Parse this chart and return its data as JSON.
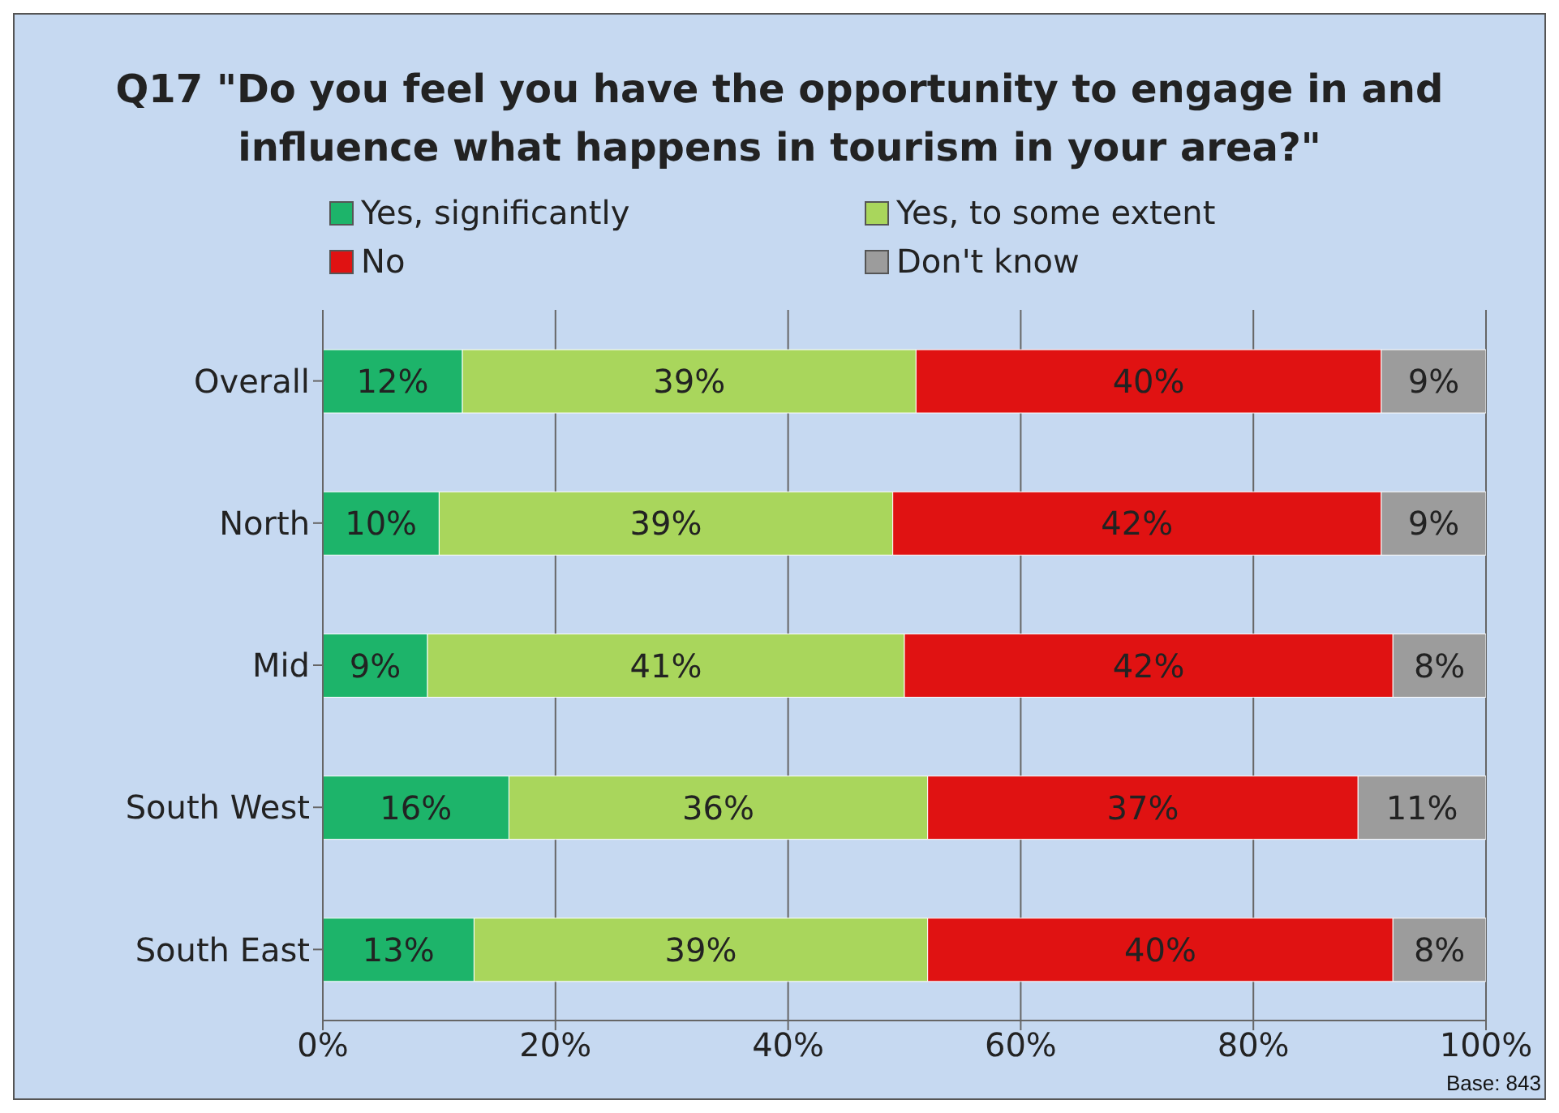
{
  "chart_data": {
    "type": "bar",
    "orientation": "horizontal",
    "stacked": true,
    "title": "Q17 \"Do you feel you have the opportunity to engage in and influence what happens in tourism in your area?\"",
    "categories": [
      "Overall",
      "North",
      "Mid",
      "South West",
      "South East"
    ],
    "series": [
      {
        "name": "Yes, significantly",
        "color": "#1db46a",
        "values": [
          12,
          10,
          9,
          16,
          13
        ],
        "value_labels": [
          "12%",
          "10%",
          "9%",
          "16%",
          "13%"
        ]
      },
      {
        "name": "Yes, to some extent",
        "color": "#a9d65c",
        "values": [
          39,
          39,
          41,
          36,
          39
        ],
        "value_labels": [
          "39%",
          "39%",
          "41%",
          "36%",
          "39%"
        ]
      },
      {
        "name": "No",
        "color": "#e01212",
        "values": [
          40,
          42,
          42,
          37,
          40
        ],
        "value_labels": [
          "40%",
          "42%",
          "42%",
          "37%",
          "40%"
        ]
      },
      {
        "name": "Don't know",
        "color": "#9c9c9c",
        "values": [
          9,
          9,
          8,
          11,
          8
        ],
        "value_labels": [
          "9%",
          "9%",
          "8%",
          "11%",
          "8%"
        ]
      }
    ],
    "xlim": [
      0,
      100
    ],
    "xticks": [
      {
        "value": 0,
        "label": "0%"
      },
      {
        "value": 20,
        "label": "20%"
      },
      {
        "value": 40,
        "label": "40%"
      },
      {
        "value": 60,
        "label": "60%"
      },
      {
        "value": 80,
        "label": "80%"
      },
      {
        "value": 100,
        "label": "100%"
      }
    ],
    "grid": "x",
    "legend": "top",
    "annotations": [
      "Base: 843"
    ]
  }
}
